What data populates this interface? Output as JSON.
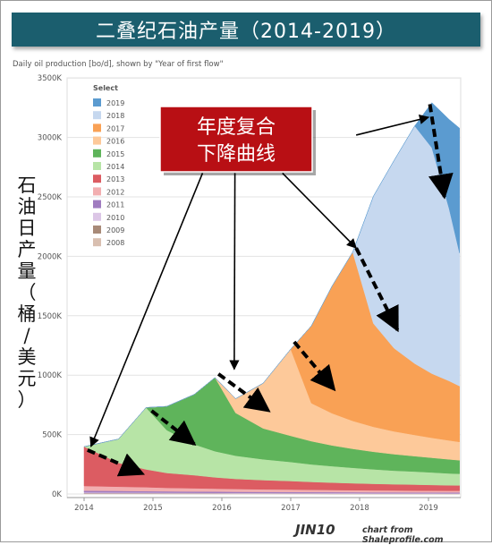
{
  "banner_title": "二叠纪石油产量（2014-2019）",
  "subtitle": "Daily oil production [bo/d], shown by \"Year of first flow\"",
  "side_label": [
    "石",
    "油",
    "日",
    "产",
    "量",
    "（",
    "桶",
    "/",
    "美",
    "元",
    "）"
  ],
  "callout": {
    "line1": "年度复合",
    "line2": "下降曲线",
    "bg_color": "#b80f14"
  },
  "footer": {
    "logo": "JIN10",
    "credit": "chart from Shaleprofile.com"
  },
  "chart_data": {
    "type": "area",
    "stacked": true,
    "title": "",
    "xlabel": "",
    "ylabel": "",
    "x": [
      2014.0,
      2014.5,
      2014.9,
      2015.2,
      2015.6,
      2015.9,
      2016.2,
      2016.6,
      2017.0,
      2017.3,
      2017.6,
      2017.9,
      2018.2,
      2018.5,
      2018.8,
      2019.05,
      2019.3,
      2019.45
    ],
    "xticks": [
      "2014",
      "2015",
      "2016",
      "2017",
      "2018",
      "2019"
    ],
    "yticks": [
      "0K",
      "500K",
      "1000K",
      "1500K",
      "2000K",
      "2500K",
      "3000K",
      "3500K"
    ],
    "ylim": [
      0,
      3500000
    ],
    "legend_title": "Select",
    "legend_position": "top-left",
    "series": [
      {
        "name": "2008",
        "color": "#d9bfb0",
        "values": [
          2000,
          2000,
          2000,
          1800,
          1700,
          1600,
          1500,
          1400,
          1300,
          1200,
          1100,
          1100,
          1000,
          1000,
          900,
          900,
          900,
          900
        ]
      },
      {
        "name": "2009",
        "color": "#a88a78",
        "values": [
          4000,
          3500,
          3300,
          3000,
          2800,
          2700,
          2600,
          2500,
          2400,
          2300,
          2200,
          2100,
          2000,
          2000,
          1900,
          1900,
          1800,
          1800
        ]
      },
      {
        "name": "2010",
        "color": "#dcc6e6",
        "values": [
          8000,
          7500,
          7000,
          6500,
          6000,
          5700,
          5400,
          5100,
          4900,
          4700,
          4500,
          4300,
          4100,
          4000,
          3900,
          3800,
          3700,
          3700
        ]
      },
      {
        "name": "2011",
        "color": "#a07cc0",
        "values": [
          14000,
          13000,
          12000,
          11000,
          10500,
          10000,
          9500,
          9000,
          8700,
          8400,
          8100,
          7800,
          7500,
          7300,
          7100,
          7000,
          6900,
          6800
        ]
      },
      {
        "name": "2012",
        "color": "#f2aeb0",
        "values": [
          40000,
          36000,
          33000,
          30000,
          27000,
          25000,
          23000,
          21000,
          20000,
          19000,
          18000,
          17000,
          16000,
          15500,
          15000,
          14500,
          14000,
          13800
        ]
      },
      {
        "name": "2013",
        "color": "#dc5c62",
        "values": [
          330000,
          200000,
          150000,
          125000,
          110000,
          95000,
          85000,
          78000,
          72000,
          66000,
          62000,
          58000,
          55000,
          52000,
          50000,
          48000,
          46000,
          45000
        ]
      },
      {
        "name": "2014",
        "color": "#b7e4a6",
        "values": [
          0,
          200000,
          520000,
          360000,
          260000,
          220000,
          195000,
          175000,
          160000,
          148000,
          138000,
          130000,
          122000,
          115000,
          110000,
          105000,
          100000,
          98000
        ]
      },
      {
        "name": "2015",
        "color": "#5fb45b",
        "values": [
          0,
          0,
          0,
          200000,
          420000,
          620000,
          360000,
          260000,
          220000,
          195000,
          175000,
          160000,
          148000,
          138000,
          130000,
          124000,
          118000,
          114000
        ]
      },
      {
        "name": "2016",
        "color": "#fdc99a",
        "values": [
          0,
          0,
          0,
          0,
          0,
          0,
          120000,
          380000,
          730000,
          320000,
          270000,
          235000,
          210000,
          192000,
          178000,
          168000,
          160000,
          154000
        ]
      },
      {
        "name": "2017",
        "color": "#f9a155",
        "values": [
          0,
          0,
          0,
          0,
          0,
          0,
          0,
          0,
          0,
          650000,
          1070000,
          1420000,
          870000,
          700000,
          600000,
          540000,
          500000,
          470000
        ]
      },
      {
        "name": "2018",
        "color": "#c6d8ef",
        "values": [
          0,
          0,
          0,
          0,
          0,
          0,
          0,
          0,
          0,
          0,
          0,
          0,
          1070000,
          1580000,
          2000000,
          1900000,
          1450000,
          1120000
        ]
      },
      {
        "name": "2019",
        "color": "#5b9bd0",
        "values": [
          0,
          0,
          0,
          0,
          0,
          0,
          0,
          0,
          0,
          0,
          0,
          0,
          0,
          0,
          0,
          380000,
          750000,
          1050000
        ]
      }
    ],
    "arrows": [
      {
        "from": [
          2015.72,
          2700000
        ],
        "to": [
          2014.1,
          400000
        ]
      },
      {
        "from": [
          2016.19,
          2700000
        ],
        "to": [
          2016.18,
          1050000
        ]
      },
      {
        "from": [
          2016.88,
          2700000
        ],
        "to": [
          2017.95,
          2070000
        ]
      },
      {
        "from": [
          2017.95,
          3020000
        ],
        "to": [
          2019.0,
          3170000
        ]
      }
    ],
    "decline_segments": [
      {
        "from": [
          2014.05,
          370000
        ],
        "to": [
          2014.85,
          170000
        ]
      },
      {
        "from": [
          2014.98,
          700000
        ],
        "to": [
          2015.6,
          420000
        ]
      },
      {
        "from": [
          2015.95,
          1010000
        ],
        "to": [
          2016.68,
          700000
        ]
      },
      {
        "from": [
          2017.05,
          1280000
        ],
        "to": [
          2017.63,
          880000
        ]
      },
      {
        "from": [
          2017.95,
          2070000
        ],
        "to": [
          2018.55,
          1380000
        ]
      },
      {
        "from": [
          2019.02,
          3280000
        ],
        "to": [
          2019.23,
          2500000
        ]
      }
    ]
  }
}
